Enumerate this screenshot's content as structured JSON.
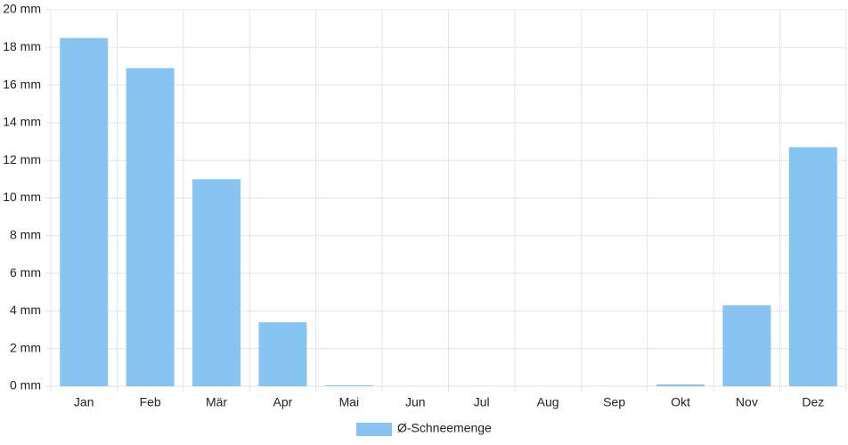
{
  "chart_data": {
    "type": "bar",
    "categories": [
      "Jan",
      "Feb",
      "Mär",
      "Apr",
      "Mai",
      "Jun",
      "Jul",
      "Aug",
      "Sep",
      "Okt",
      "Nov",
      "Dez"
    ],
    "series": [
      {
        "name": "Ø-Schneemenge",
        "color": "#88c4f1",
        "values": [
          18.5,
          16.9,
          11.0,
          3.4,
          0.05,
          0,
          0,
          0,
          0,
          0.1,
          4.3,
          12.7
        ]
      }
    ],
    "ylim": [
      0,
      20
    ],
    "yticks": [
      {
        "value": 0,
        "label": "0 mm"
      },
      {
        "value": 2,
        "label": "2 mm"
      },
      {
        "value": 4,
        "label": "4 mm"
      },
      {
        "value": 6,
        "label": "6 mm"
      },
      {
        "value": 8,
        "label": "8 mm"
      },
      {
        "value": 10,
        "label": "10 mm"
      },
      {
        "value": 12,
        "label": "12 mm"
      },
      {
        "value": 14,
        "label": "14 mm"
      },
      {
        "value": 16,
        "label": "16 mm"
      },
      {
        "value": 18,
        "label": "18 mm"
      },
      {
        "value": 20,
        "label": "20 mm"
      }
    ],
    "grid": true,
    "legend": "bottom"
  }
}
